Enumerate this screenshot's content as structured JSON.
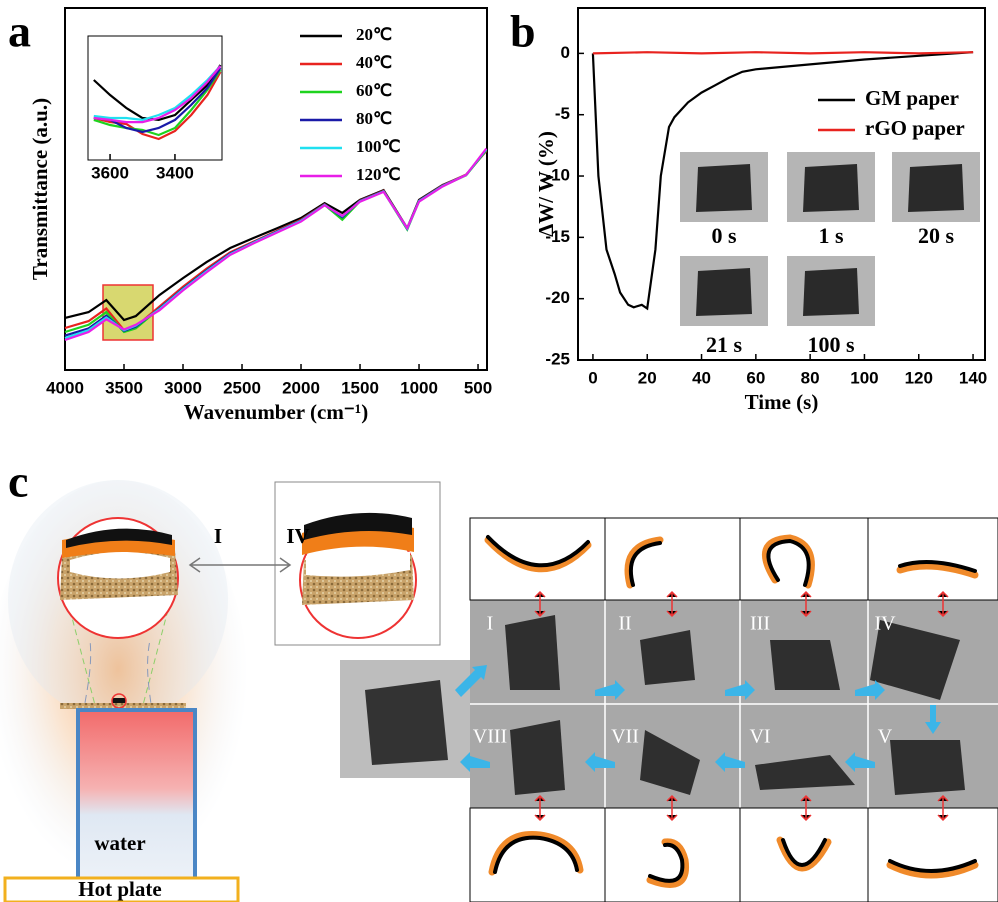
{
  "chart_data": [
    {
      "type": "line",
      "label": "a",
      "xlabel": "Wavenumber (cm⁻¹)",
      "ylabel": "Transmittance (a.u.)",
      "xlim": [
        4000,
        424
      ],
      "xticks": [
        4000,
        3500,
        3000,
        2500,
        2000,
        1500,
        1000,
        500
      ],
      "ylim": [
        0,
        100
      ],
      "x": [
        4000,
        3800,
        3650,
        3500,
        3400,
        3200,
        3000,
        2800,
        2600,
        2400,
        2200,
        2000,
        1800,
        1650,
        1500,
        1300,
        1100,
        1000,
        800,
        600,
        430
      ],
      "series": [
        {
          "name": "20℃",
          "color": "#000000",
          "values": [
            14.4,
            16.0,
            19.3,
            13.8,
            14.9,
            20.7,
            25.4,
            29.8,
            33.7,
            36.5,
            39.2,
            42.0,
            46.1,
            43.4,
            47.0,
            49.7,
            39.2,
            47.0,
            51.1,
            53.9,
            60.8
          ]
        },
        {
          "name": "40℃",
          "color": "#e8231f",
          "values": [
            11.6,
            13.5,
            17.0,
            11.0,
            12.0,
            17.5,
            23.0,
            28.0,
            32.5,
            35.5,
            38.5,
            41.5,
            45.8,
            42.0,
            46.8,
            49.5,
            39.0,
            46.8,
            51.0,
            54.0,
            60.5
          ]
        },
        {
          "name": "60℃",
          "color": "#1ed31e",
          "values": [
            10.5,
            12.5,
            16.0,
            10.5,
            11.5,
            17.0,
            22.5,
            27.5,
            32.0,
            35.2,
            38.2,
            41.2,
            45.6,
            41.5,
            46.6,
            49.3,
            38.8,
            46.6,
            50.8,
            53.8,
            60.7
          ]
        },
        {
          "name": "80℃",
          "color": "#1a1aa8",
          "values": [
            9.5,
            11.5,
            15.0,
            10.8,
            12.0,
            17.0,
            22.5,
            27.5,
            32.2,
            35.3,
            38.3,
            41.3,
            45.7,
            42.2,
            46.7,
            49.4,
            39.0,
            46.7,
            50.9,
            53.9,
            60.9
          ]
        },
        {
          "name": "100℃",
          "color": "#20e0f0",
          "values": [
            8.8,
            11.0,
            14.5,
            11.0,
            12.3,
            16.8,
            22.3,
            27.3,
            32.0,
            35.2,
            38.2,
            41.2,
            45.6,
            42.5,
            46.6,
            49.3,
            39.1,
            46.6,
            50.8,
            53.9,
            61.0
          ]
        },
        {
          "name": "120℃",
          "color": "#e81ee8",
          "values": [
            8.3,
            10.5,
            14.0,
            11.2,
            12.5,
            16.5,
            22.0,
            27.0,
            31.8,
            35.0,
            38.0,
            41.0,
            45.5,
            42.6,
            46.5,
            49.2,
            39.2,
            46.5,
            50.7,
            53.9,
            61.2
          ]
        }
      ]
    },
    {
      "type": "line",
      "xlim": [
        3668,
        3255
      ],
      "xticks": [
        3600,
        3400
      ],
      "ylim": [
        0,
        100
      ],
      "x": [
        3650,
        3600,
        3550,
        3500,
        3450,
        3400,
        3350,
        3300,
        3260
      ],
      "series": [
        {
          "color": "#000000",
          "values": [
            64.5,
            52.4,
            41.9,
            33.9,
            32.3,
            36.3,
            48.4,
            60.5,
            76.6
          ]
        },
        {
          "color": "#e8231f",
          "values": [
            33.9,
            30.6,
            29.0,
            21.0,
            16.9,
            23.4,
            36.3,
            52.4,
            71.0
          ]
        },
        {
          "color": "#1ed31e",
          "values": [
            32.3,
            28.2,
            25.8,
            24.2,
            20.2,
            25.8,
            40.3,
            56.5,
            72.6
          ]
        },
        {
          "color": "#1a1aa8",
          "values": [
            33.9,
            32.3,
            25.8,
            22.6,
            25.8,
            32.3,
            44.4,
            58.1,
            74.2
          ]
        },
        {
          "color": "#20e0f0",
          "values": [
            35.5,
            33.9,
            33.9,
            32.3,
            36.3,
            41.9,
            52.4,
            64.5,
            75.8
          ]
        },
        {
          "color": "#e81ee8",
          "values": [
            33.9,
            32.3,
            30.6,
            30.6,
            33.9,
            40.3,
            50.0,
            62.9,
            75.8
          ]
        }
      ]
    },
    {
      "type": "line",
      "label": "b",
      "xlabel": "Time (s)",
      "ylabel": "ΔW/ W (%)",
      "xlim": [
        -5.5,
        144.4
      ],
      "xticks": [
        0,
        20,
        40,
        60,
        80,
        100,
        120,
        140
      ],
      "ylim": [
        -25,
        3.7
      ],
      "yticks": [
        0,
        -5,
        -10,
        -15,
        -20,
        -25
      ],
      "series": [
        {
          "name": "GM paper",
          "color": "#000000",
          "x": [
            0,
            2,
            5,
            8,
            10,
            13,
            15,
            18,
            20,
            23,
            25,
            28,
            30,
            35,
            40,
            45,
            50,
            55,
            60,
            80,
            100,
            120,
            140
          ],
          "values": [
            0,
            -10,
            -16,
            -18,
            -19.5,
            -20.5,
            -20.7,
            -20.5,
            -20.8,
            -16,
            -10,
            -6,
            -5.2,
            -4,
            -3.2,
            -2.6,
            -2.0,
            -1.5,
            -1.3,
            -0.9,
            -0.5,
            -0.2,
            0.1
          ]
        },
        {
          "name": "rGO paper",
          "color": "#e8231f",
          "x": [
            0,
            20,
            40,
            60,
            80,
            100,
            120,
            140
          ],
          "values": [
            0,
            0.1,
            0,
            0.1,
            0,
            0.1,
            0,
            0.1
          ]
        }
      ],
      "photo_labels": [
        "0 s",
        "1 s",
        "20 s",
        "21 s",
        "100 s"
      ]
    }
  ],
  "panel_c": {
    "label": "c",
    "arrow_labels": [
      "I",
      "IV"
    ],
    "water": "water",
    "hot_plate": "Hot plate",
    "numerals": [
      "I",
      "II",
      "III",
      "IV",
      "VIII",
      "VII",
      "VI",
      "V"
    ]
  }
}
